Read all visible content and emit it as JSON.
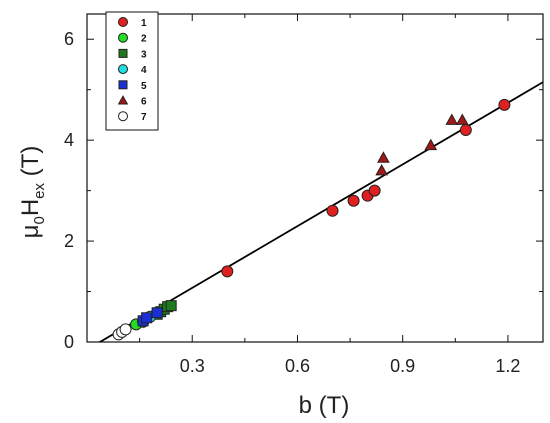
{
  "chart_data": {
    "type": "scatter",
    "xlabel": "b (T)",
    "ylabel_main": "μ",
    "ylabel_sub0": "0",
    "ylabel_H": "H",
    "ylabel_subex": "ex",
    "ylabel_unit": " (T)",
    "xlim": [
      0.0,
      1.3
    ],
    "ylim": [
      0,
      6.5
    ],
    "xticks": [
      0.3,
      0.6,
      0.9,
      1.2
    ],
    "xtick_labels": [
      "0.3",
      "0.6",
      "0.9",
      "1.2"
    ],
    "yticks": [
      0,
      2,
      4,
      6
    ],
    "ytick_labels": [
      "0",
      "2",
      "4",
      "6"
    ],
    "legend_position": "top-left",
    "fit_line": {
      "x": [
        0.0,
        1.3
      ],
      "y": [
        -0.15,
        5.15
      ]
    },
    "series": [
      {
        "name": "1",
        "marker": "circle",
        "color": "#e02020",
        "x": [
          0.4,
          0.7,
          0.76,
          0.8,
          0.82,
          1.08,
          1.19
        ],
        "y": [
          1.4,
          2.6,
          2.8,
          2.9,
          3.0,
          4.2,
          4.7
        ]
      },
      {
        "name": "2",
        "marker": "circle",
        "color": "#22dd22",
        "x": [
          0.14,
          0.16
        ],
        "y": [
          0.35,
          0.4
        ]
      },
      {
        "name": "3",
        "marker": "square",
        "color": "#1f7a1f",
        "x": [
          0.2,
          0.21,
          0.22,
          0.23,
          0.24
        ],
        "y": [
          0.55,
          0.6,
          0.65,
          0.7,
          0.72
        ]
      },
      {
        "name": "4",
        "marker": "circle",
        "color": "#22dddd",
        "x": [
          0.16,
          0.18
        ],
        "y": [
          0.42,
          0.5
        ]
      },
      {
        "name": "5",
        "marker": "square",
        "color": "#1a2fd6",
        "x": [
          0.16,
          0.17,
          0.2
        ],
        "y": [
          0.42,
          0.48,
          0.58
        ]
      },
      {
        "name": "6",
        "marker": "triangle",
        "color": "#a01818",
        "x": [
          0.84,
          0.845,
          0.98,
          1.04,
          1.07
        ],
        "y": [
          3.4,
          3.65,
          3.9,
          4.4,
          4.4
        ]
      },
      {
        "name": "7",
        "marker": "circle",
        "color": "#ffffff",
        "x": [
          0.09,
          0.1,
          0.11
        ],
        "y": [
          0.15,
          0.2,
          0.25
        ]
      }
    ]
  }
}
